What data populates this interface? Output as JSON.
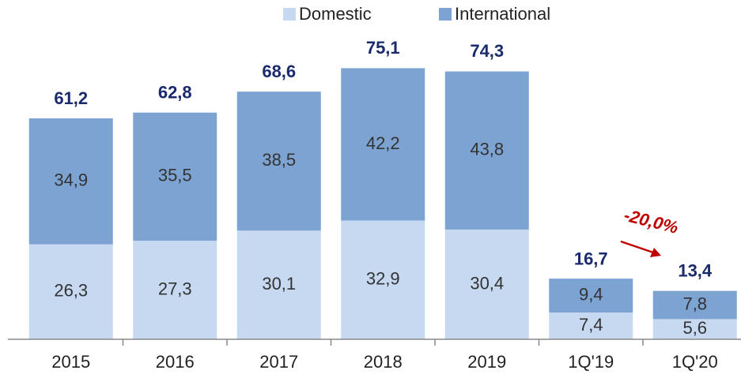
{
  "chart_data": {
    "type": "stacked_bar",
    "categories": [
      "2015",
      "2016",
      "2017",
      "2018",
      "2019",
      "1Q'19",
      "1Q'20"
    ],
    "series": [
      {
        "name": "Domestic",
        "color": "#c6d9f1",
        "values": [
          26.3,
          27.3,
          30.1,
          32.9,
          30.4,
          7.4,
          5.6
        ],
        "value_labels": [
          "26,3",
          "27,3",
          "30,1",
          "32,9",
          "30,4",
          "7,4",
          "5,6"
        ]
      },
      {
        "name": "International",
        "color": "#7ca3d2",
        "values": [
          34.9,
          35.5,
          38.5,
          42.2,
          43.8,
          9.4,
          7.8
        ],
        "value_labels": [
          "34,9",
          "35,5",
          "38,5",
          "42,2",
          "43,8",
          "9,4",
          "7,8"
        ]
      }
    ],
    "totals": [
      61.2,
      62.8,
      68.6,
      75.1,
      74.3,
      16.7,
      13.4
    ],
    "total_labels": [
      "61,2",
      "62,8",
      "68,6",
      "75,1",
      "74,3",
      "16,7",
      "13,4"
    ],
    "annotation": "-20,0%",
    "ylim": [
      0,
      80
    ]
  }
}
